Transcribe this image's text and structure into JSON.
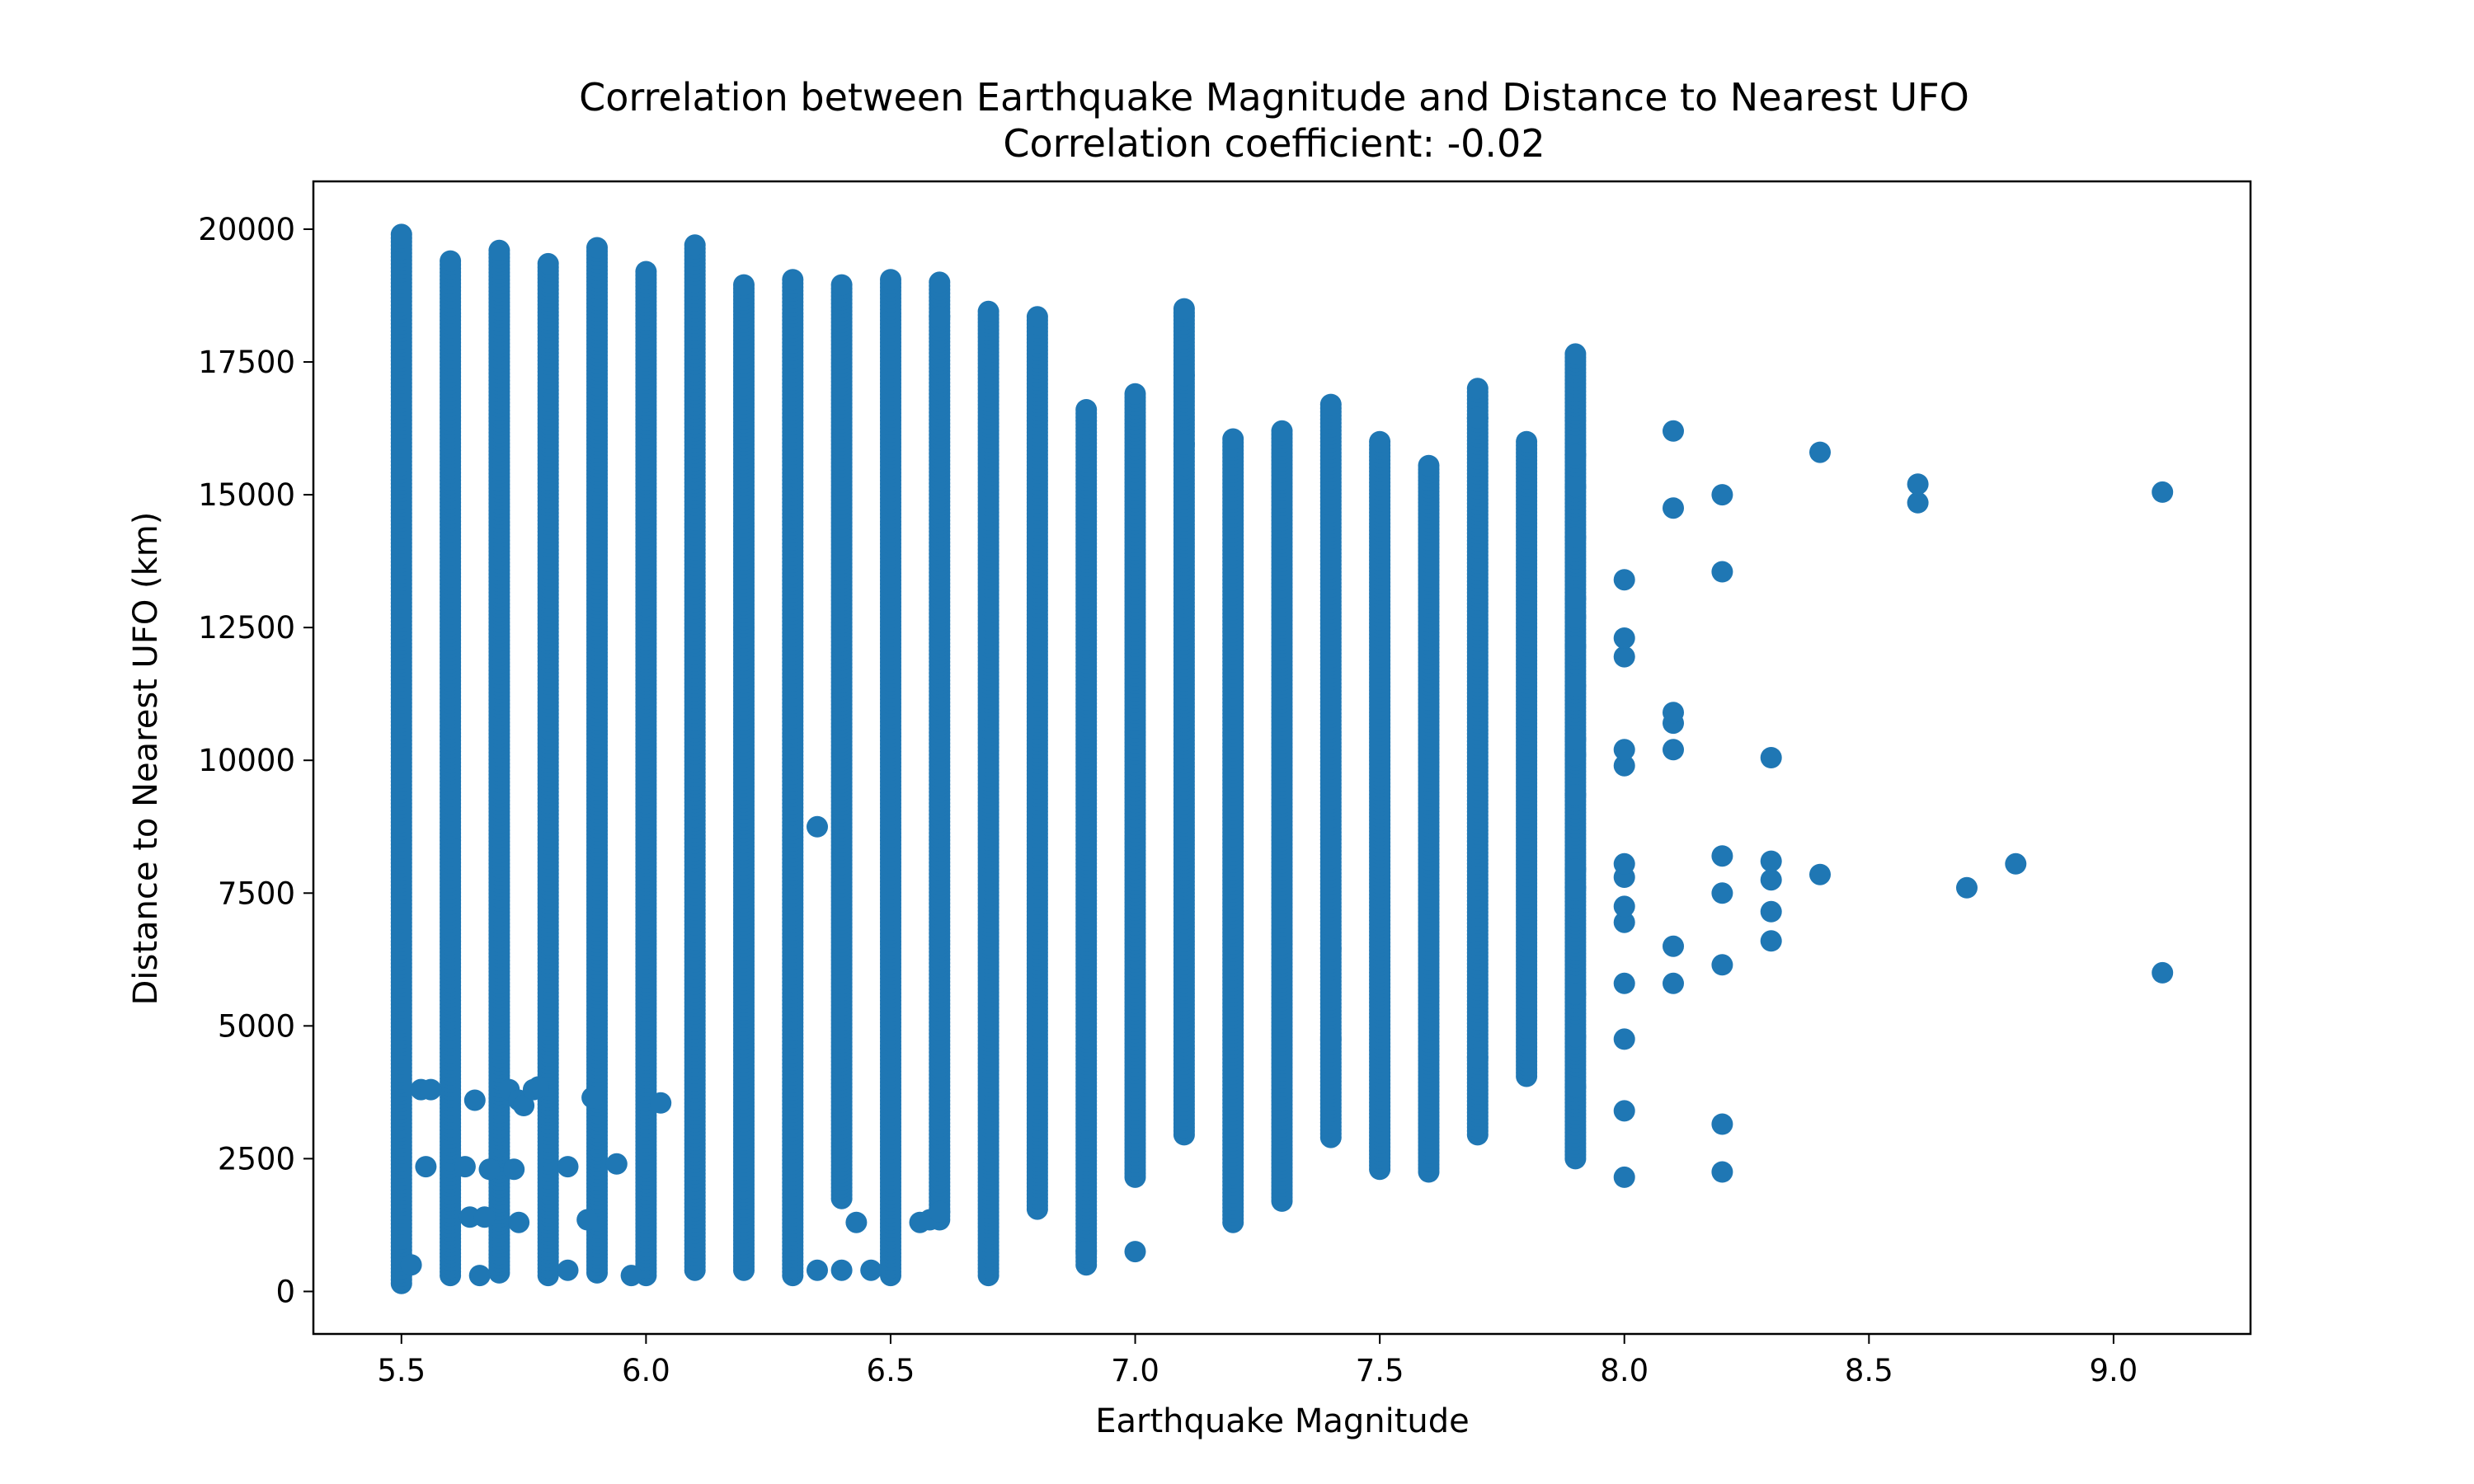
{
  "chart_data": {
    "type": "scatter",
    "title": "Correlation between Earthquake Magnitude and Distance to Nearest UFO",
    "subtitle": "Correlation coefficient: -0.02",
    "xlabel": "Earthquake Magnitude",
    "ylabel": "Distance to Nearest UFO (km)",
    "xlim": [
      5.32,
      9.28
    ],
    "ylim": [
      -800,
      20900
    ],
    "xticks": [
      5.5,
      6.0,
      6.5,
      7.0,
      7.5,
      8.0,
      8.5,
      9.0
    ],
    "xtick_labels": [
      "5.5",
      "6.0",
      "6.5",
      "7.0",
      "7.5",
      "8.0",
      "8.5",
      "9.0"
    ],
    "yticks": [
      0,
      2500,
      5000,
      7500,
      10000,
      12500,
      15000,
      17500,
      20000
    ],
    "ytick_labels": [
      "0",
      "2500",
      "5000",
      "7500",
      "10000",
      "12500",
      "15000",
      "17500",
      "20000"
    ],
    "grid": false,
    "marker_color": "#1f77b4",
    "columns": [
      {
        "x": 5.5,
        "ymin": 150,
        "ymax": 19900
      },
      {
        "x": 5.6,
        "ymin": 300,
        "ymax": 19400
      },
      {
        "x": 5.7,
        "ymin": 350,
        "ymax": 19600
      },
      {
        "x": 5.8,
        "ymin": 300,
        "ymax": 19350
      },
      {
        "x": 5.9,
        "ymin": 350,
        "ymax": 19650
      },
      {
        "x": 6.0,
        "ymin": 300,
        "ymax": 19200
      },
      {
        "x": 6.1,
        "ymin": 400,
        "ymax": 19700
      },
      {
        "x": 6.2,
        "ymin": 400,
        "ymax": 18950
      },
      {
        "x": 6.3,
        "ymin": 300,
        "ymax": 19050
      },
      {
        "x": 6.4,
        "ymin": 1750,
        "ymax": 18950
      },
      {
        "x": 6.5,
        "ymin": 300,
        "ymax": 19050
      },
      {
        "x": 6.6,
        "ymin": 1350,
        "ymax": 19000
      },
      {
        "x": 6.7,
        "ymin": 300,
        "ymax": 18450
      },
      {
        "x": 6.8,
        "ymin": 1550,
        "ymax": 18350
      },
      {
        "x": 6.9,
        "ymin": 500,
        "ymax": 16600
      },
      {
        "x": 7.0,
        "ymin": 2150,
        "ymax": 16900
      },
      {
        "x": 7.1,
        "ymin": 2950,
        "ymax": 18500
      },
      {
        "x": 7.2,
        "ymin": 1300,
        "ymax": 16050
      },
      {
        "x": 7.3,
        "ymin": 1700,
        "ymax": 16200
      },
      {
        "x": 7.4,
        "ymin": 2900,
        "ymax": 16700
      },
      {
        "x": 7.5,
        "ymin": 2300,
        "ymax": 16000
      },
      {
        "x": 7.6,
        "ymin": 2250,
        "ymax": 15550
      },
      {
        "x": 7.7,
        "ymin": 2950,
        "ymax": 17000
      },
      {
        "x": 7.8,
        "ymin": 4050,
        "ymax": 16000
      },
      {
        "x": 7.9,
        "ymin": 2500,
        "ymax": 17650
      }
    ],
    "points": [
      {
        "x": 5.52,
        "y": 500
      },
      {
        "x": 5.54,
        "y": 3800
      },
      {
        "x": 5.55,
        "y": 2350
      },
      {
        "x": 5.56,
        "y": 3800
      },
      {
        "x": 5.63,
        "y": 2350
      },
      {
        "x": 5.65,
        "y": 3600
      },
      {
        "x": 5.66,
        "y": 300
      },
      {
        "x": 5.64,
        "y": 1400
      },
      {
        "x": 5.67,
        "y": 1400
      },
      {
        "x": 5.68,
        "y": 2300
      },
      {
        "x": 5.72,
        "y": 3800
      },
      {
        "x": 5.73,
        "y": 2300
      },
      {
        "x": 5.74,
        "y": 3600
      },
      {
        "x": 5.75,
        "y": 3500
      },
      {
        "x": 5.74,
        "y": 1300
      },
      {
        "x": 5.77,
        "y": 3800
      },
      {
        "x": 5.78,
        "y": 3850
      },
      {
        "x": 5.84,
        "y": 2350
      },
      {
        "x": 5.84,
        "y": 400
      },
      {
        "x": 5.88,
        "y": 1350
      },
      {
        "x": 5.89,
        "y": 3650
      },
      {
        "x": 5.94,
        "y": 2400
      },
      {
        "x": 5.97,
        "y": 300
      },
      {
        "x": 6.03,
        "y": 3550
      },
      {
        "x": 6.35,
        "y": 8750
      },
      {
        "x": 6.35,
        "y": 400
      },
      {
        "x": 6.4,
        "y": 400
      },
      {
        "x": 6.43,
        "y": 1300
      },
      {
        "x": 6.46,
        "y": 400
      },
      {
        "x": 6.56,
        "y": 1300
      },
      {
        "x": 6.58,
        "y": 1350
      },
      {
        "x": 6.6,
        "y": 1500
      },
      {
        "x": 6.6,
        "y": 18350
      },
      {
        "x": 6.9,
        "y": 750
      },
      {
        "x": 7.0,
        "y": 750
      },
      {
        "x": 7.1,
        "y": 17250
      },
      {
        "x": 7.1,
        "y": 15950
      },
      {
        "x": 7.4,
        "y": 4750
      },
      {
        "x": 7.4,
        "y": 6450
      },
      {
        "x": 7.7,
        "y": 16450
      },
      {
        "x": 7.7,
        "y": 4400
      },
      {
        "x": 7.9,
        "y": 3850
      },
      {
        "x": 7.9,
        "y": 4800
      },
      {
        "x": 7.9,
        "y": 5600
      },
      {
        "x": 7.9,
        "y": 7600
      },
      {
        "x": 7.9,
        "y": 7950
      },
      {
        "x": 7.9,
        "y": 9350
      },
      {
        "x": 7.9,
        "y": 10100
      },
      {
        "x": 7.9,
        "y": 10400
      },
      {
        "x": 7.9,
        "y": 11400
      },
      {
        "x": 7.9,
        "y": 12150
      },
      {
        "x": 7.9,
        "y": 12700
      },
      {
        "x": 7.9,
        "y": 13050
      },
      {
        "x": 7.9,
        "y": 14200
      },
      {
        "x": 7.9,
        "y": 15150
      },
      {
        "x": 7.9,
        "y": 15750
      },
      {
        "x": 8.0,
        "y": 2150
      },
      {
        "x": 8.0,
        "y": 3400
      },
      {
        "x": 8.0,
        "y": 4750
      },
      {
        "x": 8.0,
        "y": 5800
      },
      {
        "x": 8.0,
        "y": 6950
      },
      {
        "x": 8.0,
        "y": 7250
      },
      {
        "x": 8.0,
        "y": 7800
      },
      {
        "x": 8.0,
        "y": 8050
      },
      {
        "x": 8.0,
        "y": 9900
      },
      {
        "x": 8.0,
        "y": 10200
      },
      {
        "x": 8.0,
        "y": 11950
      },
      {
        "x": 8.0,
        "y": 12300
      },
      {
        "x": 8.0,
        "y": 13400
      },
      {
        "x": 8.1,
        "y": 5800
      },
      {
        "x": 8.1,
        "y": 6500
      },
      {
        "x": 8.1,
        "y": 10200
      },
      {
        "x": 8.1,
        "y": 10700
      },
      {
        "x": 8.1,
        "y": 10900
      },
      {
        "x": 8.1,
        "y": 14750
      },
      {
        "x": 8.1,
        "y": 16200
      },
      {
        "x": 8.2,
        "y": 2250
      },
      {
        "x": 8.2,
        "y": 3150
      },
      {
        "x": 8.2,
        "y": 6150
      },
      {
        "x": 8.2,
        "y": 7500
      },
      {
        "x": 8.2,
        "y": 8200
      },
      {
        "x": 8.2,
        "y": 13550
      },
      {
        "x": 8.2,
        "y": 15000
      },
      {
        "x": 8.3,
        "y": 6600
      },
      {
        "x": 8.3,
        "y": 7150
      },
      {
        "x": 8.3,
        "y": 7750
      },
      {
        "x": 8.3,
        "y": 8100
      },
      {
        "x": 8.3,
        "y": 10050
      },
      {
        "x": 8.4,
        "y": 7850
      },
      {
        "x": 8.4,
        "y": 15800
      },
      {
        "x": 8.6,
        "y": 14850
      },
      {
        "x": 8.6,
        "y": 15200
      },
      {
        "x": 8.7,
        "y": 7600
      },
      {
        "x": 8.8,
        "y": 8050
      },
      {
        "x": 9.1,
        "y": 6000
      },
      {
        "x": 9.1,
        "y": 15050
      }
    ]
  }
}
